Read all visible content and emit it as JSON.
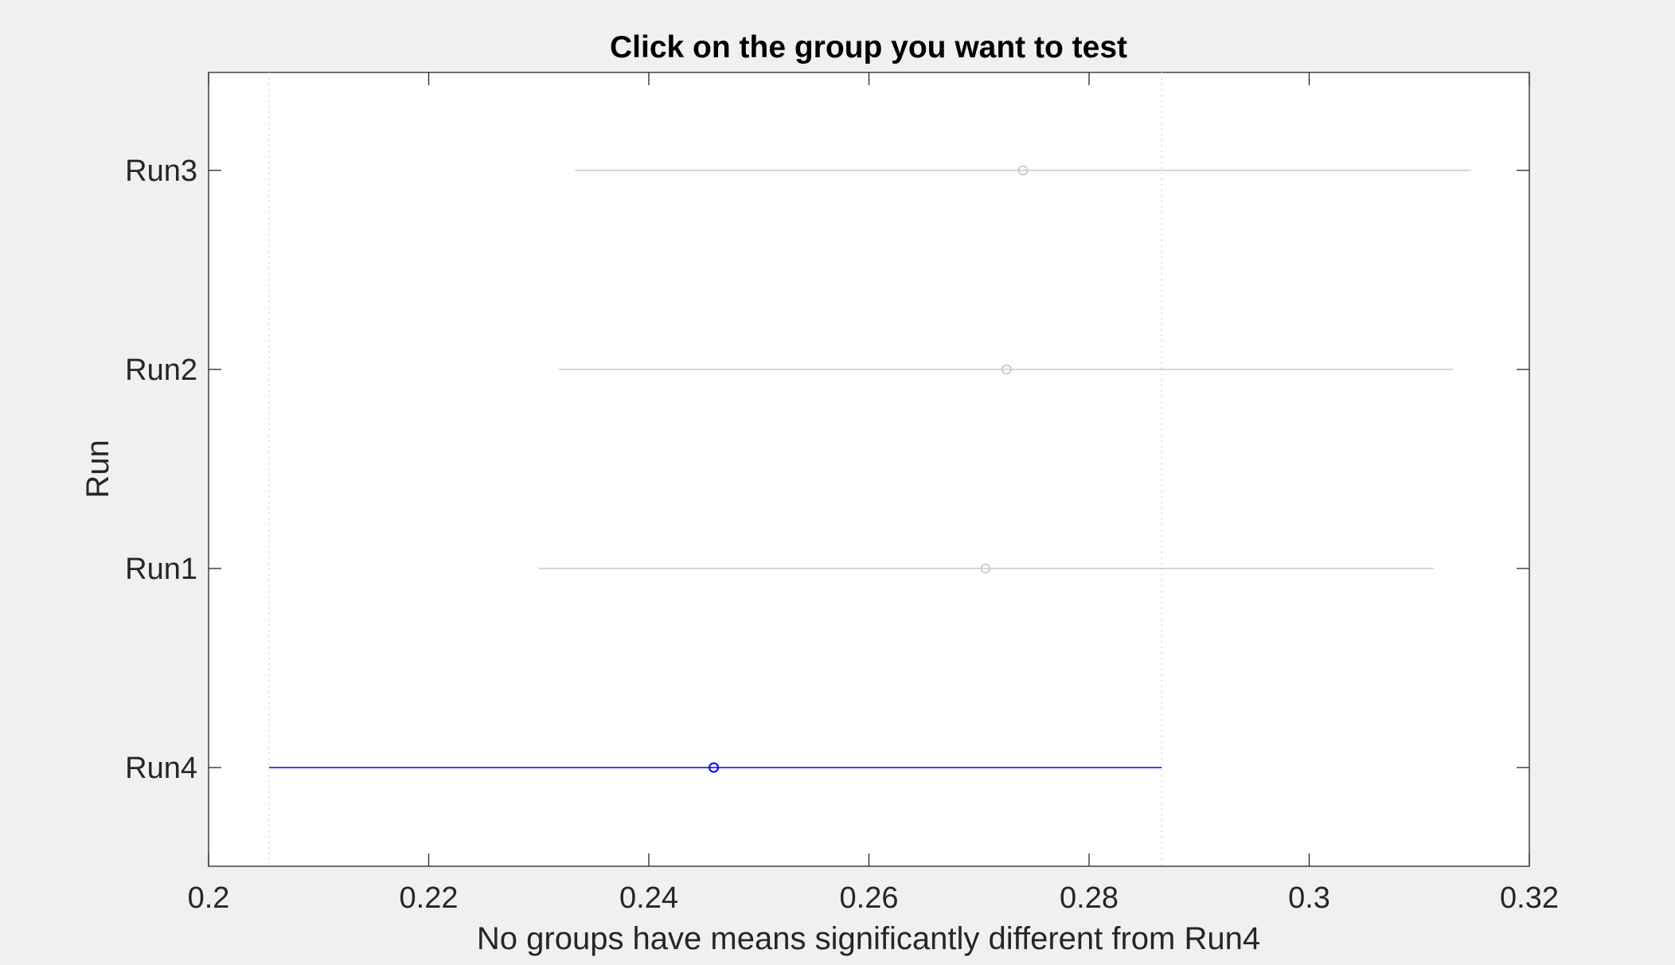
{
  "chart_data": {
    "type": "scatter",
    "title": "Click on the group you want to test",
    "xlabel": "No groups have means significantly different from Run4",
    "ylabel": "Run",
    "xlim": [
      0.2,
      0.32
    ],
    "x_ticks": [
      0.2,
      0.22,
      0.24,
      0.26,
      0.28,
      0.3,
      0.32
    ],
    "x_tick_labels": [
      "0.2",
      "0.22",
      "0.24",
      "0.26",
      "0.28",
      "0.3",
      "0.32"
    ],
    "grid": false,
    "groups": [
      {
        "name": "Run3",
        "mean": 0.274,
        "lower": 0.2333,
        "upper": 0.3147,
        "selected": false
      },
      {
        "name": "Run2",
        "mean": 0.2725,
        "lower": 0.2318,
        "upper": 0.3131,
        "selected": false
      },
      {
        "name": "Run1",
        "mean": 0.2706,
        "lower": 0.23,
        "upper": 0.3113,
        "selected": false
      },
      {
        "name": "Run4",
        "mean": 0.2459,
        "lower": 0.2055,
        "upper": 0.2866,
        "selected": true
      }
    ],
    "reference_lines": [
      0.2055,
      0.2866
    ],
    "colors": {
      "selected": "#0000ff",
      "unselected": "#c8c8c8",
      "reference": "#d9d9d9",
      "axes": "#262626",
      "plot_background": "#ffffff",
      "figure_background": "#f0f0f0"
    }
  }
}
